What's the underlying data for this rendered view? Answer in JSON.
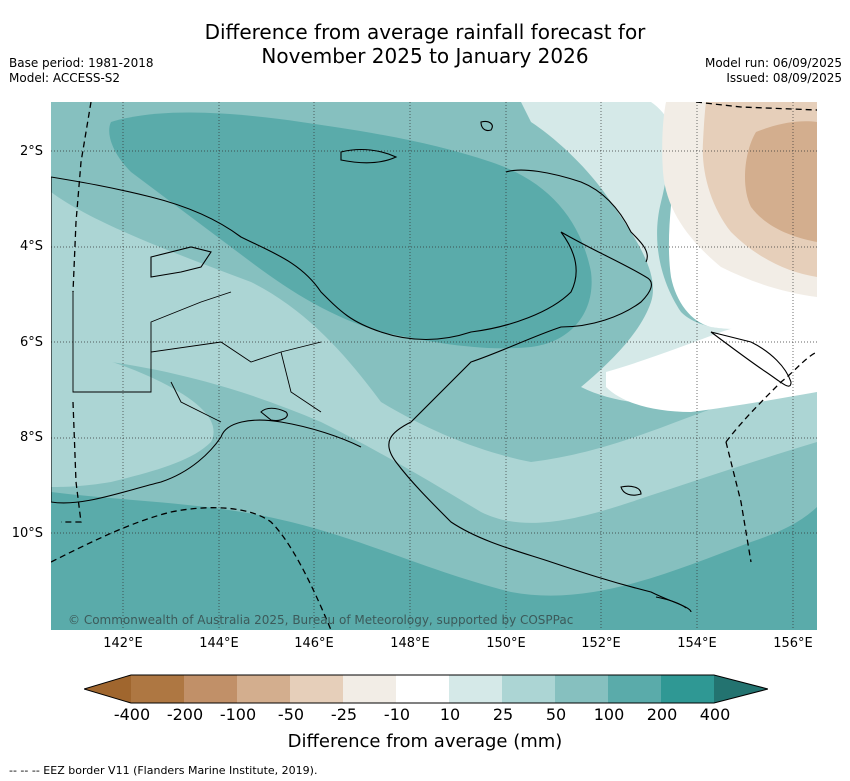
{
  "title": {
    "line1": "Difference from average rainfall forecast for",
    "line2": "November 2025 to January 2026"
  },
  "meta_left": {
    "base_period": "Base period: 1981-2018",
    "model": "Model: ACCESS-S2"
  },
  "meta_right": {
    "model_run": "Model run: 06/09/2025",
    "issued": "Issued: 08/09/2025"
  },
  "lat_labels": [
    "2°S",
    "4°S",
    "6°S",
    "8°S",
    "10°S"
  ],
  "lon_labels": [
    "142°E",
    "144°E",
    "146°E",
    "148°E",
    "150°E",
    "152°E",
    "154°E",
    "156°E"
  ],
  "credit": "© Commonwealth of Australia 2025, Bureau of Meteorology, supported by COSPPac",
  "colorbar": {
    "ticks": [
      "-400",
      "-200",
      "-100",
      "-50",
      "-25",
      "-10",
      "10",
      "25",
      "50",
      "100",
      "200",
      "400"
    ],
    "colors": [
      "#a0662e",
      "#ae7742",
      "#c19068",
      "#d3ae8e",
      "#e6cfba",
      "#f2ede6",
      "#ffffff",
      "#d5e9e8",
      "#acd5d4",
      "#86c0bf",
      "#5aabaa",
      "#2f9894",
      "#237370"
    ],
    "label": "Difference from average (mm)"
  },
  "footnote": "--  --  -- EEZ border V11 (Flanders Marine Institute, 2019)."
}
